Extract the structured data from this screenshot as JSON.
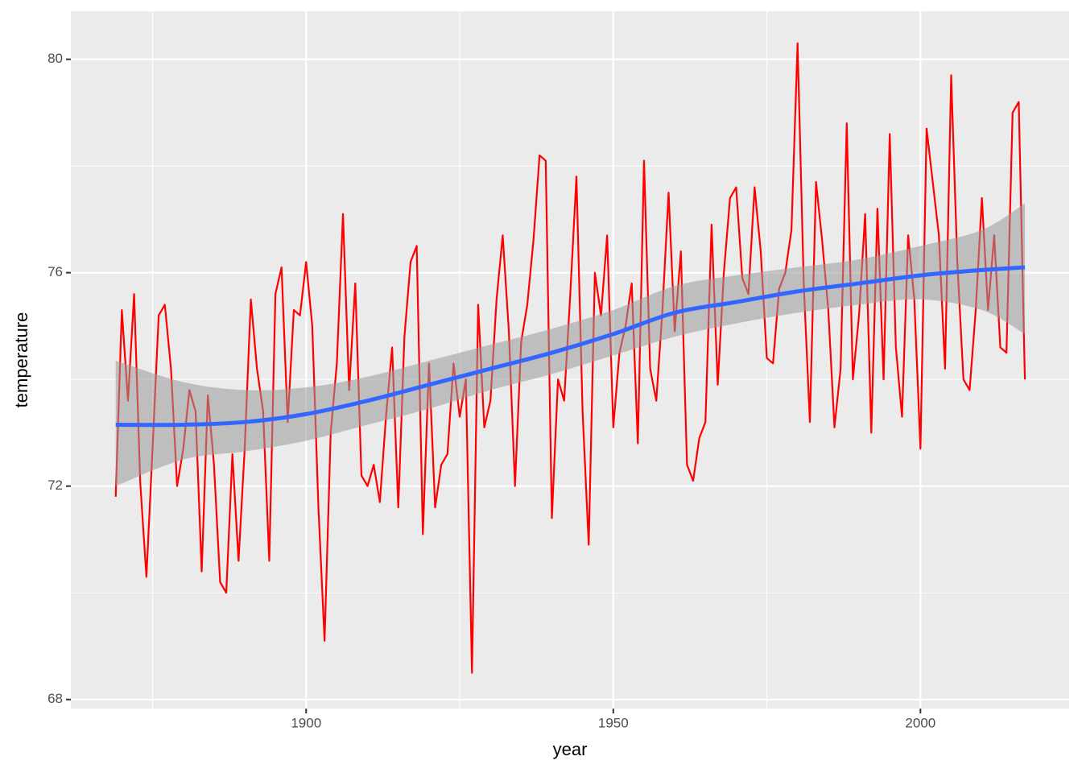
{
  "chart_data": {
    "type": "line",
    "x_label": "year",
    "y_label": "temperature",
    "xlim": [
      1861.7,
      2024.2
    ],
    "ylim": [
      67.83,
      80.9
    ],
    "xticks": [
      1900,
      1950,
      2000
    ],
    "yticks": [
      68,
      72,
      76,
      80
    ],
    "minor_xticks": [
      1875,
      1925,
      1975
    ],
    "minor_yticks": [
      70,
      74,
      78
    ],
    "panel_color": "#ebebeb",
    "grid_color": "#ffffff",
    "x": [
      1869,
      1870,
      1871,
      1872,
      1873,
      1874,
      1875,
      1876,
      1877,
      1878,
      1879,
      1880,
      1881,
      1882,
      1883,
      1884,
      1885,
      1886,
      1887,
      1888,
      1889,
      1890,
      1891,
      1892,
      1893,
      1894,
      1895,
      1896,
      1897,
      1898,
      1899,
      1900,
      1901,
      1902,
      1903,
      1904,
      1905,
      1906,
      1907,
      1908,
      1909,
      1910,
      1911,
      1912,
      1913,
      1914,
      1915,
      1916,
      1917,
      1918,
      1919,
      1920,
      1921,
      1922,
      1923,
      1924,
      1925,
      1926,
      1927,
      1928,
      1929,
      1930,
      1931,
      1932,
      1933,
      1934,
      1935,
      1936,
      1937,
      1938,
      1939,
      1940,
      1941,
      1942,
      1943,
      1944,
      1945,
      1946,
      1947,
      1948,
      1949,
      1950,
      1951,
      1952,
      1953,
      1954,
      1955,
      1956,
      1957,
      1958,
      1959,
      1960,
      1961,
      1962,
      1963,
      1964,
      1965,
      1966,
      1967,
      1968,
      1969,
      1970,
      1971,
      1972,
      1973,
      1974,
      1975,
      1976,
      1977,
      1978,
      1979,
      1980,
      1981,
      1982,
      1983,
      1984,
      1985,
      1986,
      1987,
      1988,
      1989,
      1990,
      1991,
      1992,
      1993,
      1994,
      1995,
      1996,
      1997,
      1998,
      1999,
      2000,
      2001,
      2002,
      2003,
      2004,
      2005,
      2006,
      2007,
      2008,
      2009,
      2010,
      2011,
      2012,
      2013,
      2014,
      2015,
      2016,
      2017
    ],
    "series": [
      {
        "color": "#ff0000",
        "values": [
          71.8,
          75.3,
          73.6,
          75.6,
          72.06,
          70.3,
          72.7,
          75.2,
          75.4,
          74.2,
          72.0,
          72.7,
          73.8,
          73.4,
          70.4,
          73.7,
          72.4,
          70.2,
          70.0,
          72.6,
          70.6,
          72.7,
          75.5,
          74.2,
          73.4,
          70.6,
          75.6,
          76.1,
          73.2,
          75.3,
          75.2,
          76.2,
          75.0,
          71.6,
          69.1,
          73.0,
          74.3,
          77.1,
          73.8,
          75.8,
          72.2,
          72.0,
          72.4,
          71.7,
          73.3,
          74.6,
          71.6,
          74.8,
          76.2,
          76.5,
          71.1,
          74.3,
          71.6,
          72.4,
          72.6,
          74.3,
          73.3,
          74.0,
          68.5,
          75.4,
          73.1,
          73.6,
          75.5,
          76.7,
          74.9,
          72.0,
          74.7,
          75.4,
          76.6,
          78.2,
          78.1,
          71.4,
          74.0,
          73.6,
          75.6,
          77.8,
          73.4,
          70.9,
          76.0,
          75.2,
          76.7,
          73.1,
          74.5,
          75.0,
          75.8,
          72.8,
          78.1,
          74.2,
          73.6,
          75.3,
          77.5,
          74.9,
          76.4,
          72.4,
          72.1,
          72.9,
          73.2,
          76.9,
          73.9,
          76.0,
          77.4,
          77.6,
          75.9,
          75.6,
          77.6,
          76.4,
          74.4,
          74.3,
          75.7,
          76.0,
          76.8,
          80.3,
          75.8,
          73.2,
          77.7,
          76.6,
          75.3,
          73.1,
          74.2,
          78.8,
          74.0,
          75.2,
          77.1,
          73.0,
          77.2,
          74.0,
          78.6,
          74.6,
          73.3,
          76.7,
          75.5,
          72.7,
          78.7,
          77.7,
          76.7,
          74.2,
          79.7,
          76.2,
          74.0,
          73.8,
          75.3,
          77.4,
          75.3,
          76.7,
          74.6,
          74.5,
          79.0,
          79.2,
          74.0
        ]
      }
    ],
    "smooth": {
      "color": "#3366ff",
      "fill": "#999999",
      "x": [
        1869,
        1880,
        1890,
        1900,
        1910,
        1920,
        1930,
        1940,
        1950,
        1960,
        1970,
        1980,
        1990,
        2000,
        2010,
        2017
      ],
      "values": [
        73.15,
        73.15,
        73.2,
        73.35,
        73.6,
        73.9,
        74.2,
        74.5,
        74.85,
        75.25,
        75.45,
        75.65,
        75.8,
        75.95,
        76.05,
        76.1
      ],
      "lower": [
        72.0,
        72.5,
        72.65,
        72.85,
        73.15,
        73.45,
        73.8,
        74.1,
        74.45,
        74.8,
        75.05,
        75.25,
        75.4,
        75.5,
        75.3,
        74.85
      ],
      "upper": [
        74.35,
        73.95,
        73.8,
        73.85,
        74.05,
        74.35,
        74.65,
        74.95,
        75.3,
        75.75,
        75.95,
        76.1,
        76.25,
        76.5,
        76.8,
        77.3
      ]
    }
  }
}
